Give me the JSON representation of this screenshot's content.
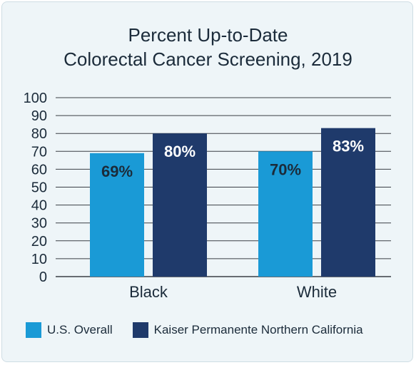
{
  "chart_data": {
    "type": "bar",
    "title_line1": "Percent Up-to-Date",
    "title_line2": "Colorectal Cancer Screening, 2019",
    "categories": [
      "Black",
      "White"
    ],
    "series": [
      {
        "name": "U.S. Overall",
        "values": [
          69,
          70
        ],
        "labels": [
          "69%",
          "70%"
        ],
        "color": "#1a9ad6",
        "label_color": "#1b2b3a"
      },
      {
        "name": "Kaiser Permanente Northern California",
        "values": [
          80,
          83
        ],
        "labels": [
          "80%",
          "83%"
        ],
        "color": "#1f3a6b",
        "label_color": "#ffffff"
      }
    ],
    "ylim": [
      0,
      100
    ],
    "yticks": [
      0,
      10,
      20,
      30,
      40,
      50,
      60,
      70,
      80,
      90,
      100
    ],
    "grid": true,
    "legend_position": "bottom"
  }
}
